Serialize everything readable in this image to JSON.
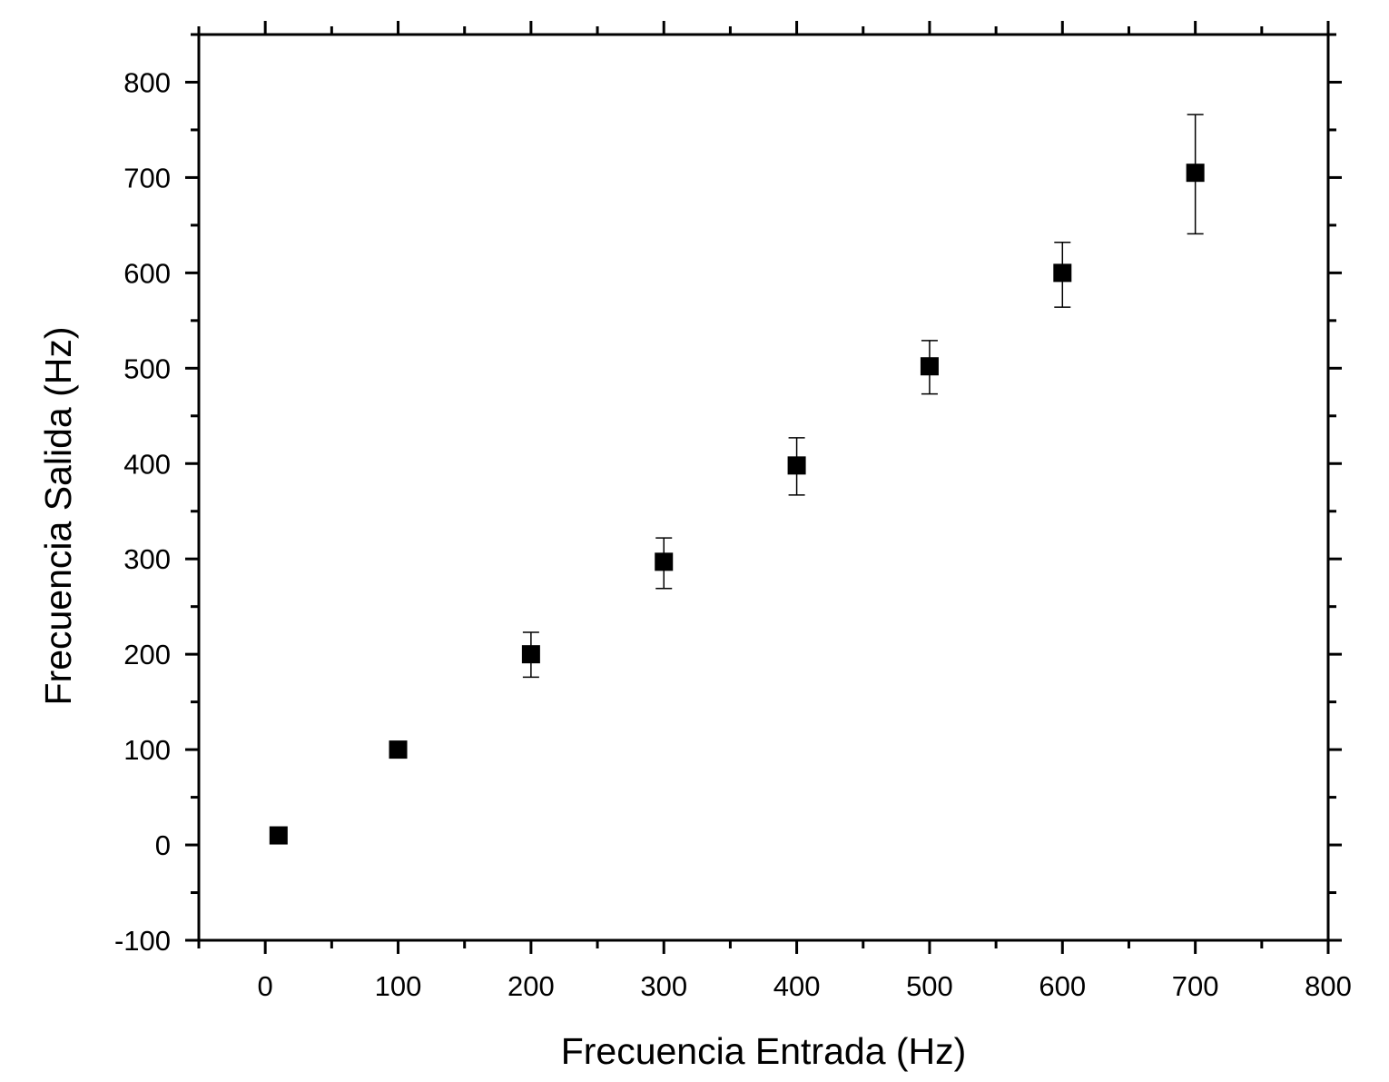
{
  "chart_data": {
    "type": "scatter",
    "title": "",
    "xlabel": "Frecuencia Entrada (Hz)",
    "ylabel": "Frecuencia Salida (Hz)",
    "xlim": [
      -50,
      800
    ],
    "ylim": [
      -100,
      850
    ],
    "x_ticks": [
      0,
      100,
      200,
      300,
      400,
      500,
      600,
      700,
      800
    ],
    "y_ticks": [
      -100,
      0,
      100,
      200,
      300,
      400,
      500,
      600,
      700,
      800
    ],
    "x_tick_labels": [
      "0",
      "100",
      "200",
      "300",
      "400",
      "500",
      "600",
      "700",
      "800"
    ],
    "y_tick_labels": [
      "-100",
      "0",
      "100",
      "200",
      "300",
      "400",
      "500",
      "600",
      "700",
      "800"
    ],
    "grid": false,
    "marker": "square",
    "marker_color": "#000000",
    "series": [
      {
        "points": [
          {
            "x": 10,
            "y": 10,
            "yerr_low": 10,
            "yerr_high": 10
          },
          {
            "x": 100,
            "y": 100,
            "yerr_low": 100,
            "yerr_high": 100
          },
          {
            "x": 200,
            "y": 200,
            "yerr_low": 176,
            "yerr_high": 223
          },
          {
            "x": 300,
            "y": 297,
            "yerr_low": 269,
            "yerr_high": 322
          },
          {
            "x": 400,
            "y": 398,
            "yerr_low": 367,
            "yerr_high": 427
          },
          {
            "x": 500,
            "y": 502,
            "yerr_low": 473,
            "yerr_high": 529
          },
          {
            "x": 600,
            "y": 600,
            "yerr_low": 564,
            "yerr_high": 632
          },
          {
            "x": 700,
            "y": 705,
            "yerr_low": 641,
            "yerr_high": 766
          }
        ]
      }
    ]
  }
}
